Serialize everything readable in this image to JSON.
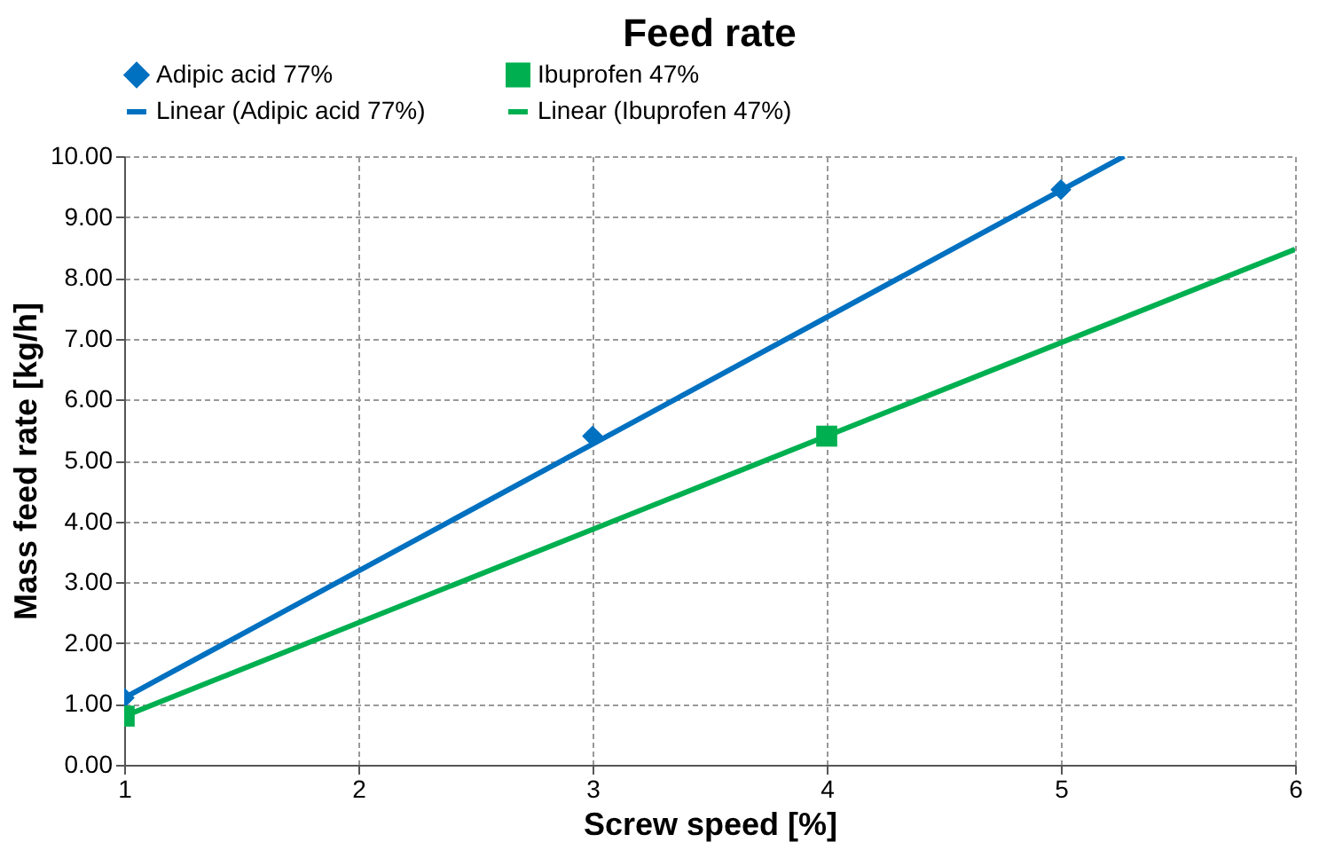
{
  "chart_data": {
    "type": "scatter",
    "title": "Feed rate",
    "xlabel": "Screw speed [%]",
    "ylabel": "Mass feed rate [kg/h]",
    "series": [
      {
        "name": "Adipic acid 77%",
        "type": "scatter",
        "marker": "diamond",
        "color": "#0070c0",
        "x": [
          1,
          3,
          5
        ],
        "values": [
          1.1,
          5.4,
          9.45
        ]
      },
      {
        "name": "Ibuprofen 47%",
        "type": "scatter",
        "marker": "square",
        "color": "#00b050",
        "x": [
          1,
          4
        ],
        "values": [
          0.8,
          5.4
        ]
      },
      {
        "name": "Linear (Adipic acid 77%)",
        "type": "line",
        "color": "#0070c0",
        "x": [
          1,
          5.27
        ],
        "values": [
          1.1,
          10.0
        ]
      },
      {
        "name": "Linear (Ibuprofen 47%)",
        "type": "line",
        "color": "#00b050",
        "x": [
          1,
          6
        ],
        "values": [
          0.8,
          8.47
        ]
      }
    ],
    "xlim": [
      1,
      6
    ],
    "xticks": [
      1,
      2,
      3,
      4,
      5,
      6
    ],
    "ylim": [
      0,
      10
    ],
    "yticks": [
      {
        "value": 0,
        "label": "0.00"
      },
      {
        "value": 1,
        "label": "1.00"
      },
      {
        "value": 2,
        "label": "2.00"
      },
      {
        "value": 3,
        "label": "3.00"
      },
      {
        "value": 4,
        "label": "4.00"
      },
      {
        "value": 5,
        "label": "5.00"
      },
      {
        "value": 6,
        "label": "6.00"
      },
      {
        "value": 7,
        "label": "7.00"
      },
      {
        "value": 8,
        "label": "8.00"
      },
      {
        "value": 9,
        "label": "9.00"
      },
      {
        "value": 10,
        "label": "10.00"
      }
    ],
    "grid": true,
    "legend": "top"
  }
}
